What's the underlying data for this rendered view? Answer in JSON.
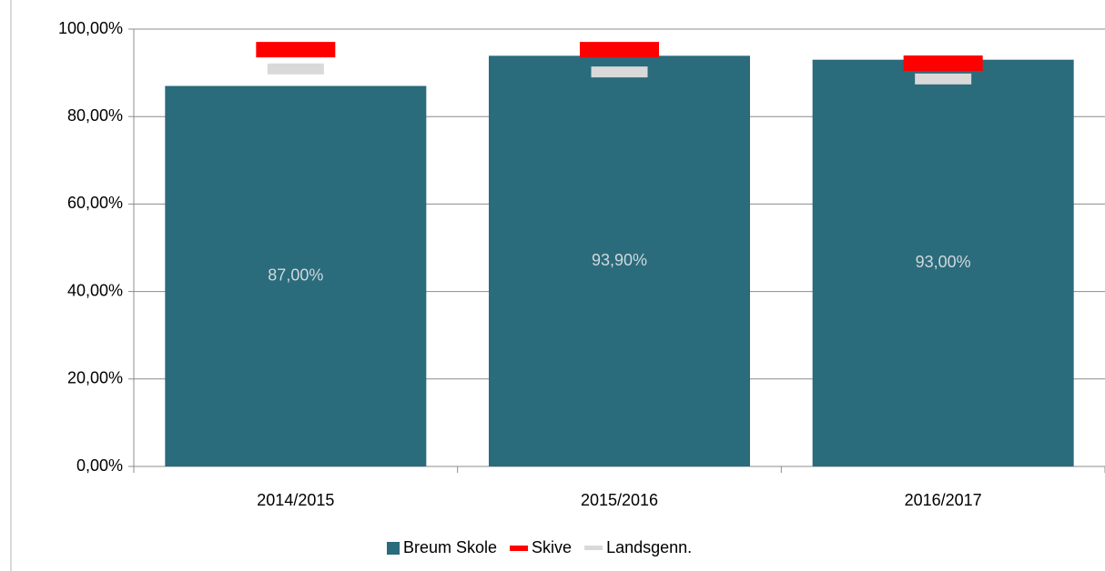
{
  "chart_data": {
    "type": "bar",
    "categories": [
      "2014/2015",
      "2015/2016",
      "2016/2017"
    ],
    "series": [
      {
        "name": "Breum Skole",
        "type": "bar",
        "color": "#2a6b7c",
        "values": [
          87,
          93.9,
          93
        ],
        "value_labels": [
          "87,00%",
          "93,90%",
          "93,00%"
        ]
      },
      {
        "name": "Skive",
        "type": "marker",
        "color": "#ff0000",
        "values": [
          95.3,
          95.3,
          92.2
        ]
      },
      {
        "name": "Landsgenn.",
        "type": "marker",
        "color": "#d9d9d9",
        "values": [
          90.9,
          90.2,
          88.6
        ]
      }
    ],
    "ylim": [
      0,
      100
    ],
    "yticks": [
      {
        "value": 0,
        "label": "0,00%"
      },
      {
        "value": 20,
        "label": "20,00%"
      },
      {
        "value": 40,
        "label": "40,00%"
      },
      {
        "value": 60,
        "label": "60,00%"
      },
      {
        "value": 80,
        "label": "80,00%"
      },
      {
        "value": 100,
        "label": "100,00%"
      }
    ],
    "grid": true,
    "legend": "bottom"
  }
}
